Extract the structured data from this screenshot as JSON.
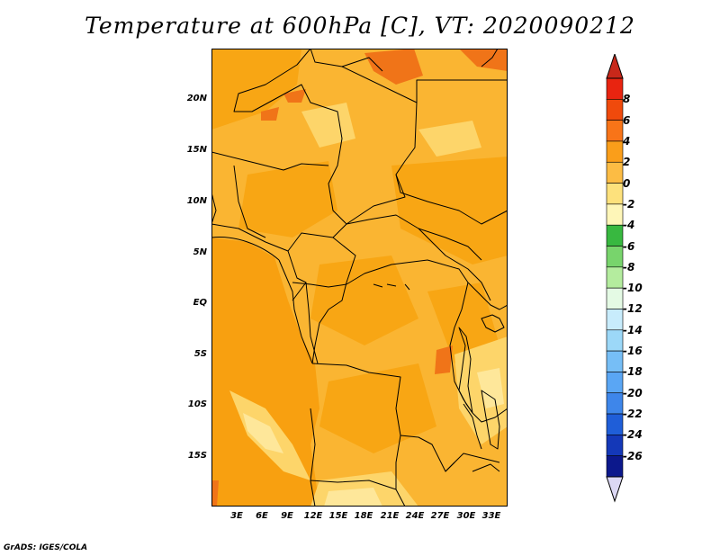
{
  "title": "Temperature at 600hPa [C], VT: 2020090212",
  "credit": "GrADS: IGES/COLA",
  "lat_labels": [
    "20N",
    "15N",
    "10N",
    "5N",
    "EQ",
    "5S",
    "10S",
    "15S"
  ],
  "lon_labels": [
    "3E",
    "6E",
    "9E",
    "12E",
    "15E",
    "18E",
    "21E",
    "24E",
    "27E",
    "30E",
    "33E"
  ],
  "colorbar": {
    "labels": [
      "8",
      "6",
      "4",
      "2",
      "0",
      "-2",
      "-4",
      "-6",
      "-8",
      "-10",
      "-12",
      "-14",
      "-16",
      "-18",
      "-20",
      "-22",
      "-24",
      "-26"
    ],
    "colors": [
      "#e82410",
      "#f04a0c",
      "#f87418",
      "#fa9e1a",
      "#fcbc44",
      "#fde17c",
      "#fef6b8",
      "#38b840",
      "#78d46c",
      "#b4ec9e",
      "#e4fae4",
      "#c8ecfc",
      "#9cd8f8",
      "#76bef6",
      "#5aa6f4",
      "#3e86ea",
      "#1f5ed8",
      "#1438b8",
      "#0c188c"
    ],
    "over_color": "#c8281a",
    "under_color": "#dcd8f4"
  },
  "colors": {
    "ocean": "#f8a010",
    "land_base": "#fab532",
    "warm": "#f8a614",
    "hot": "#f07418",
    "cool": "#fdd56a",
    "cooler": "#fee79a"
  }
}
